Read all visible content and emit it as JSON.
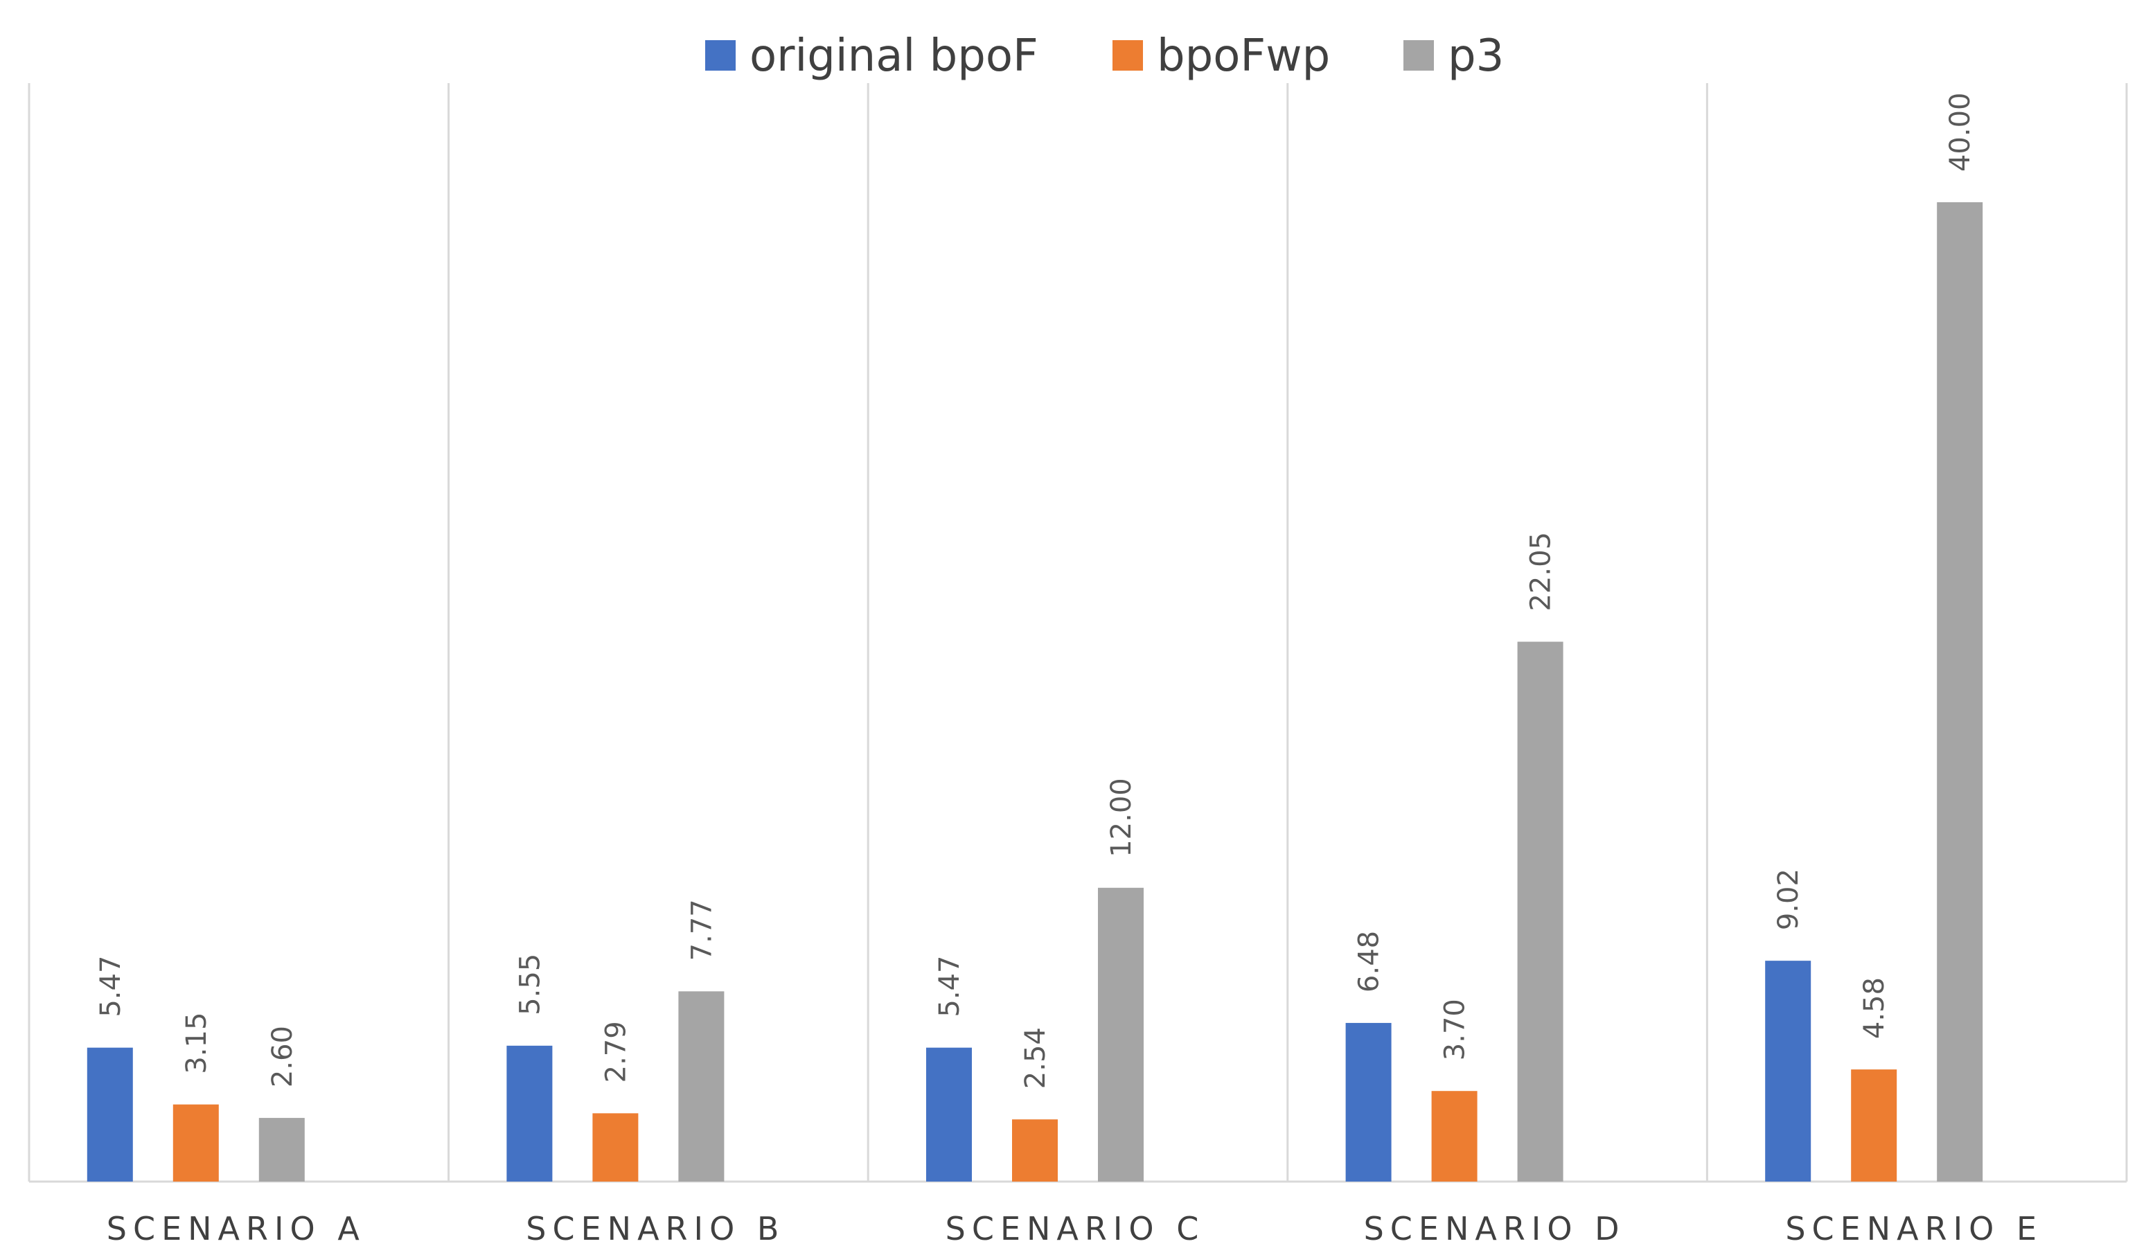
{
  "chart_data": {
    "type": "bar",
    "title": "",
    "xlabel": "",
    "ylabel": "",
    "ylim": [
      0,
      45
    ],
    "grid": "vertical category separators",
    "legend_position": "top-center",
    "categories": [
      "SCENARIO A",
      "SCENARIO B",
      "SCENARIO C",
      "SCENARIO D",
      "SCENARIO E"
    ],
    "series": [
      {
        "name": "original bpoF",
        "color": "#4472c4",
        "values": [
          5.47,
          5.55,
          5.47,
          6.48,
          9.02
        ],
        "labels": [
          "5.47",
          "5.55",
          "5.47",
          "6.48",
          "9.02"
        ]
      },
      {
        "name": "bpoFwp",
        "color": "#ed7d31",
        "values": [
          3.15,
          2.79,
          2.54,
          3.7,
          4.58
        ],
        "labels": [
          "3.15",
          "2.79",
          "2.54",
          "3.70",
          "4.58"
        ]
      },
      {
        "name": "p3",
        "color": "#a5a5a5",
        "values": [
          2.6,
          7.77,
          12.0,
          22.05,
          40.0
        ],
        "labels": [
          "2.60",
          "7.77",
          "12.00",
          "22.05",
          "40.00"
        ]
      }
    ]
  }
}
